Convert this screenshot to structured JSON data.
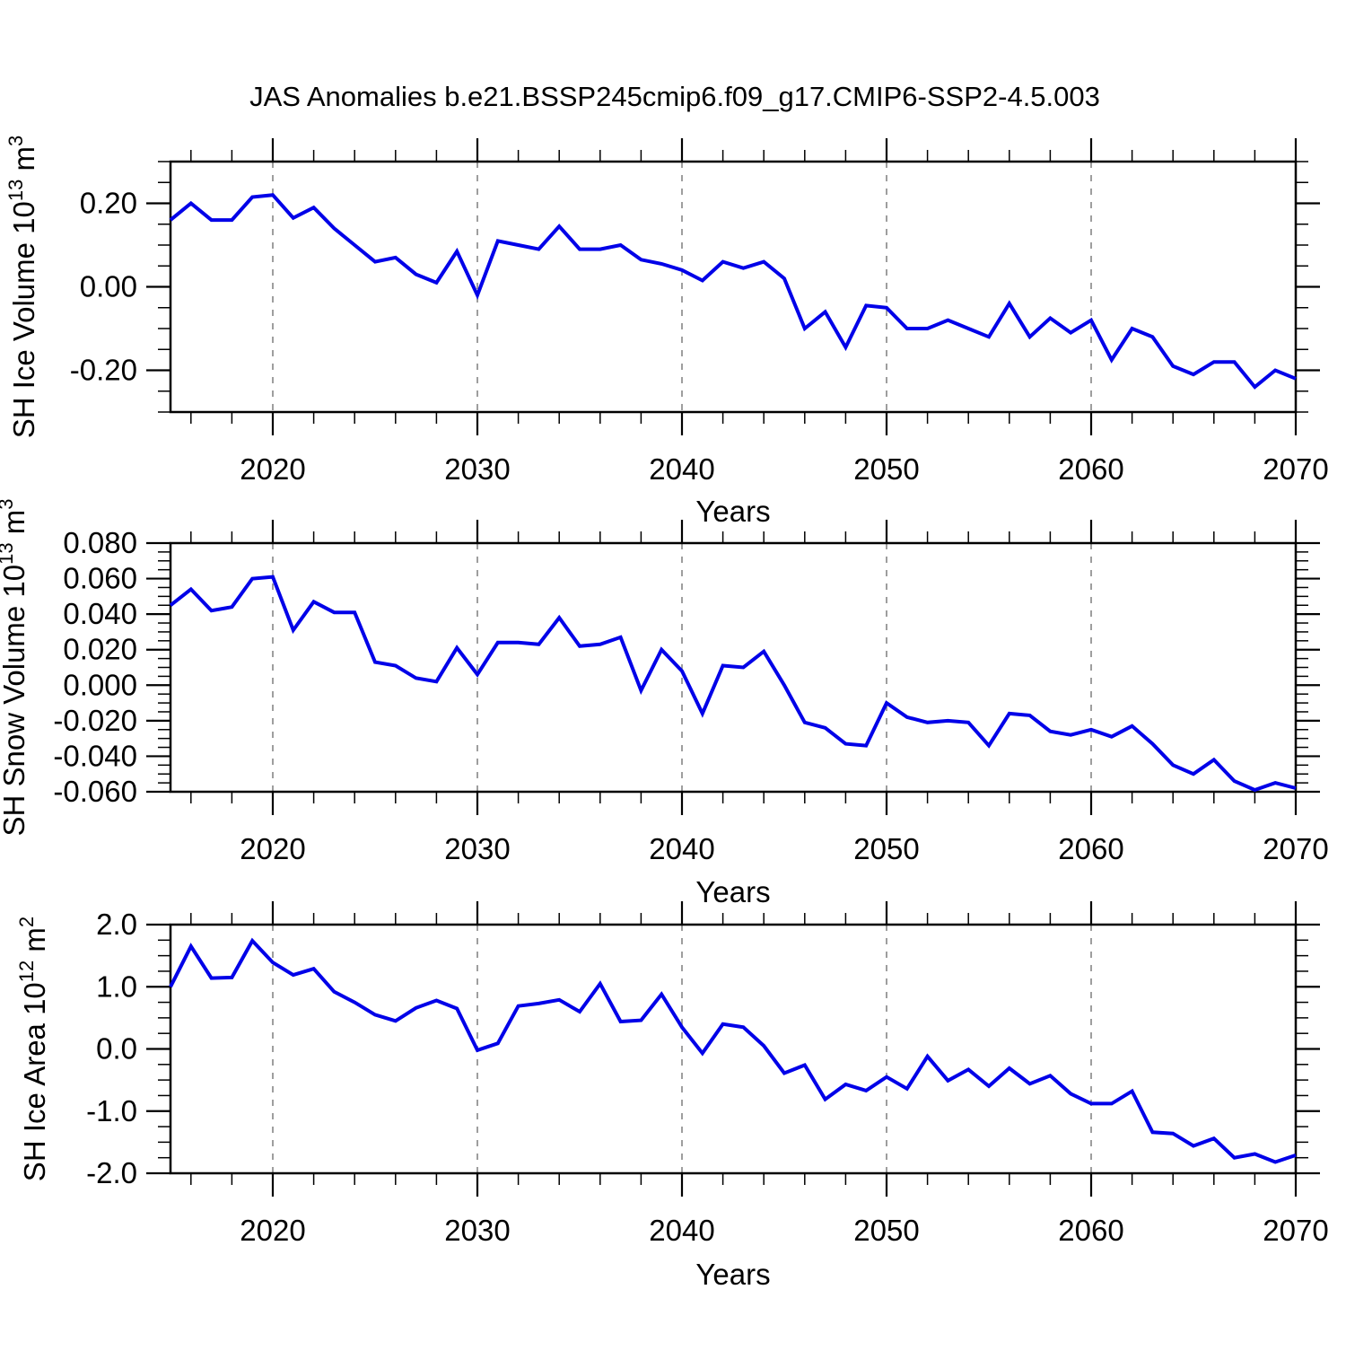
{
  "title": "JAS Anomalies b.e21.BSSP245cmip6.f09_g17.CMIP6-SSP2-4.5.003",
  "colors": {
    "line": "#0000e8",
    "grid": "#7f7f7f",
    "axis": "#000000"
  },
  "x_axis": {
    "label": "Years",
    "start_year": 2015,
    "end_year": 2070,
    "major_tick_labels": [
      "2020",
      "2030",
      "2040",
      "2050",
      "2060",
      "2070"
    ],
    "major_tick_years": [
      2020,
      2030,
      2040,
      2050,
      2060,
      2070
    ],
    "gridline_years": [
      2020,
      2030,
      2040,
      2050,
      2060
    ],
    "minor_step_years": 2
  },
  "chart_data": [
    {
      "type": "line",
      "name": "sh-ice-volume",
      "ylabel_parts": [
        {
          "t": "SH Ice Volume 10"
        },
        {
          "t": "13",
          "sup": true
        },
        {
          "t": " m"
        },
        {
          "t": "3",
          "sup": true
        }
      ],
      "ylim": [
        -0.3,
        0.3
      ],
      "ytick_values": [
        0.2,
        0.0,
        -0.2
      ],
      "ytick_labels": [
        "0.20",
        "0.00",
        "-0.20"
      ],
      "yminor_step": 0.05,
      "x_start": 2015,
      "values": [
        0.16,
        0.2,
        0.16,
        0.16,
        0.215,
        0.22,
        0.165,
        0.19,
        0.14,
        0.1,
        0.06,
        0.07,
        0.03,
        0.01,
        0.085,
        -0.02,
        0.11,
        0.1,
        0.09,
        0.145,
        0.09,
        0.09,
        0.1,
        0.065,
        0.055,
        0.04,
        0.015,
        0.06,
        0.045,
        0.06,
        0.02,
        -0.1,
        -0.06,
        -0.145,
        -0.045,
        -0.05,
        -0.1,
        -0.1,
        -0.08,
        -0.1,
        -0.12,
        -0.04,
        -0.12,
        -0.075,
        -0.11,
        -0.08,
        -0.175,
        -0.1,
        -0.12,
        -0.19,
        -0.21,
        -0.18,
        -0.18,
        -0.24,
        -0.2,
        -0.22
      ]
    },
    {
      "type": "line",
      "name": "sh-snow-volume",
      "ylabel_parts": [
        {
          "t": "SH Snow Volume 10"
        },
        {
          "t": "13",
          "sup": true
        },
        {
          "t": " m"
        },
        {
          "t": "3",
          "sup": true
        }
      ],
      "ylim": [
        -0.06,
        0.08
      ],
      "ytick_values": [
        0.08,
        0.06,
        0.04,
        0.02,
        0.0,
        -0.02,
        -0.04,
        -0.06
      ],
      "ytick_labels": [
        "0.080",
        "0.060",
        "0.040",
        "0.020",
        "0.000",
        "-0.020",
        "-0.040",
        "-0.060"
      ],
      "yminor_step": 0.005,
      "x_start": 2015,
      "values": [
        0.045,
        0.054,
        0.042,
        0.044,
        0.06,
        0.061,
        0.031,
        0.047,
        0.041,
        0.041,
        0.013,
        0.011,
        0.004,
        0.002,
        0.021,
        0.006,
        0.024,
        0.024,
        0.023,
        0.038,
        0.022,
        0.023,
        0.027,
        -0.003,
        0.02,
        0.008,
        -0.016,
        0.011,
        0.01,
        0.019,
        0.0,
        -0.021,
        -0.024,
        -0.033,
        -0.034,
        -0.01,
        -0.018,
        -0.021,
        -0.02,
        -0.021,
        -0.034,
        -0.016,
        -0.017,
        -0.026,
        -0.028,
        -0.025,
        -0.029,
        -0.023,
        -0.033,
        -0.045,
        -0.05,
        -0.042,
        -0.054,
        -0.059,
        -0.055,
        -0.058
      ]
    },
    {
      "type": "line",
      "name": "sh-ice-area",
      "ylabel_parts": [
        {
          "t": "SH Ice Area 10"
        },
        {
          "t": "12",
          "sup": true
        },
        {
          "t": " m"
        },
        {
          "t": "2",
          "sup": true
        }
      ],
      "ylim": [
        -2.0,
        2.0
      ],
      "ytick_values": [
        2.0,
        1.0,
        0.0,
        -1.0,
        -2.0
      ],
      "ytick_labels": [
        "2.0",
        "1.0",
        "0.0",
        "-1.0",
        "-2.0"
      ],
      "yminor_step": 0.25,
      "x_start": 2015,
      "values": [
        1.0,
        1.65,
        1.14,
        1.15,
        1.74,
        1.39,
        1.19,
        1.29,
        0.92,
        0.75,
        0.55,
        0.45,
        0.66,
        0.78,
        0.65,
        -0.02,
        0.09,
        0.69,
        0.73,
        0.79,
        0.6,
        1.05,
        0.44,
        0.46,
        0.88,
        0.35,
        -0.07,
        0.4,
        0.35,
        0.05,
        -0.39,
        -0.26,
        -0.81,
        -0.57,
        -0.67,
        -0.45,
        -0.64,
        -0.12,
        -0.51,
        -0.33,
        -0.6,
        -0.31,
        -0.56,
        -0.43,
        -0.72,
        -0.88,
        -0.88,
        -0.68,
        -1.34,
        -1.36,
        -1.56,
        -1.44,
        -1.75,
        -1.69,
        -1.82,
        -1.71
      ]
    }
  ]
}
